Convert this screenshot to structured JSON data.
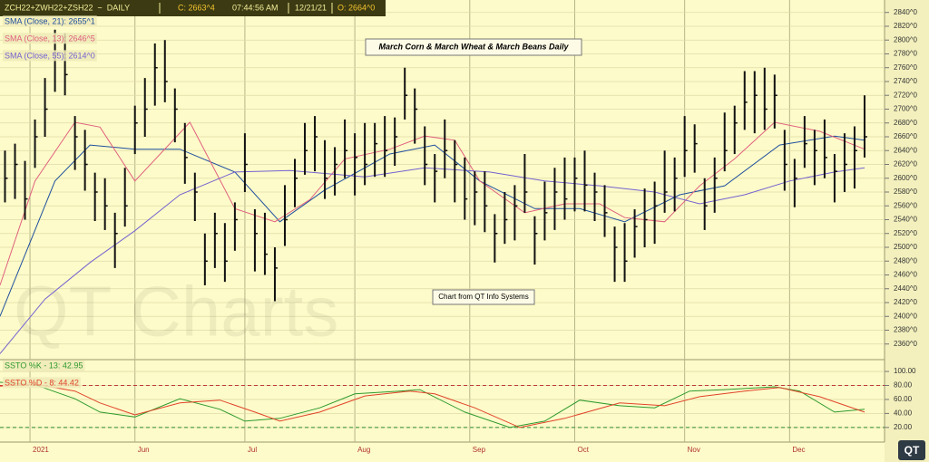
{
  "header": {
    "symbol": "ZCH22+ZWH22+ZSH22  ~  DAILY",
    "close": "C: 2663^4",
    "time": "07:44:56 AM",
    "date": "12/21/21",
    "open": "O: 2664^0"
  },
  "watermark": "QT Charts",
  "logo": "QT",
  "chart_data": [
    {
      "type": "ohlc",
      "title": "March Corn & March Wheat & March Beans Daily",
      "annotation": "Chart from QT Info Systems",
      "color": "#111111",
      "x": [
        1,
        3,
        5,
        7,
        9,
        11,
        13,
        15,
        17,
        19,
        21,
        23,
        25,
        27,
        29,
        31,
        33,
        35,
        37,
        39,
        41,
        43,
        45,
        47,
        49,
        51,
        53,
        55,
        57,
        59,
        61,
        63,
        65,
        67,
        69,
        71,
        73,
        75,
        77,
        79,
        81,
        83,
        85,
        87,
        89,
        91,
        93,
        95,
        97,
        99,
        101,
        103,
        105,
        107,
        109,
        111,
        113,
        115,
        117,
        119,
        121,
        123,
        125,
        127,
        129,
        131,
        133,
        135,
        137,
        139,
        141,
        143,
        145,
        147,
        149,
        151,
        153,
        155,
        157,
        159,
        161,
        163,
        165,
        167,
        169,
        171,
        173
      ],
      "high": [
        2640,
        2650,
        2625,
        2685,
        2745,
        2815,
        2810,
        2690,
        2670,
        2608,
        2600,
        2550,
        2615,
        2705,
        2745,
        2795,
        2800,
        2730,
        2680,
        2608,
        2520,
        2550,
        2535,
        2565,
        2665,
        2555,
        2550,
        2500,
        2590,
        2628,
        2680,
        2690,
        2655,
        2645,
        2685,
        2665,
        2680,
        2680,
        2690,
        2688,
        2760,
        2730,
        2675,
        2635,
        2685,
        2655,
        2630,
        2610,
        2610,
        2548,
        2580,
        2590,
        2635,
        2545,
        2595,
        2615,
        2630,
        2630,
        2640,
        2608,
        2590,
        2530,
        2535,
        2555,
        2585,
        2595,
        2640,
        2630,
        2690,
        2678,
        2600,
        2630,
        2695,
        2705,
        2755,
        2755,
        2760,
        2750,
        2670,
        2628,
        2690,
        2670,
        2685,
        2635,
        2665,
        2675,
        2720
      ],
      "low": [
        2565,
        2570,
        2540,
        2615,
        2660,
        2725,
        2720,
        2612,
        2582,
        2538,
        2525,
        2470,
        2530,
        2635,
        2660,
        2705,
        2710,
        2652,
        2592,
        2538,
        2445,
        2470,
        2450,
        2495,
        2580,
        2465,
        2460,
        2422,
        2502,
        2558,
        2605,
        2610,
        2570,
        2575,
        2600,
        2575,
        2590,
        2602,
        2602,
        2618,
        2685,
        2650,
        2590,
        2565,
        2600,
        2565,
        2540,
        2532,
        2522,
        2478,
        2505,
        2510,
        2550,
        2475,
        2510,
        2525,
        2540,
        2552,
        2552,
        2538,
        2515,
        2450,
        2450,
        2485,
        2500,
        2505,
        2550,
        2552,
        2602,
        2608,
        2525,
        2550,
        2610,
        2635,
        2670,
        2665,
        2670,
        2672,
        2582,
        2558,
        2615,
        2590,
        2600,
        2565,
        2580,
        2585,
        2630
      ],
      "close": [
        2600,
        2620,
        2570,
        2660,
        2700,
        2780,
        2750,
        2660,
        2620,
        2580,
        2560,
        2520,
        2560,
        2680,
        2700,
        2760,
        2740,
        2700,
        2630,
        2580,
        2480,
        2520,
        2480,
        2540,
        2620,
        2520,
        2490,
        2470,
        2540,
        2600,
        2640,
        2660,
        2600,
        2620,
        2640,
        2630,
        2620,
        2650,
        2640,
        2660,
        2720,
        2700,
        2620,
        2610,
        2640,
        2620,
        2570,
        2580,
        2560,
        2520,
        2540,
        2560,
        2580,
        2520,
        2550,
        2580,
        2570,
        2600,
        2590,
        2580,
        2550,
        2500,
        2480,
        2530,
        2540,
        2560,
        2580,
        2600,
        2640,
        2650,
        2560,
        2600,
        2640,
        2680,
        2710,
        2720,
        2700,
        2720,
        2620,
        2600,
        2650,
        2640,
        2630,
        2610,
        2620,
        2640,
        2660
      ],
      "series": [
        {
          "name": "SMA (Close, 21): 2655^1",
          "color": "#1f4f9e",
          "x": [
            0,
            11,
            18,
            27,
            36,
            47,
            56,
            65,
            78,
            87,
            96,
            107,
            116,
            125,
            136,
            145,
            156,
            167,
            173
          ],
          "values": [
            2400,
            2596,
            2648,
            2642,
            2642,
            2609,
            2537,
            2583,
            2635,
            2648,
            2596,
            2556,
            2556,
            2537,
            2576,
            2589,
            2648,
            2661,
            2655
          ]
        },
        {
          "name": "SMA (Close, 13): 2646^5",
          "color": "#e0607e",
          "x": [
            0,
            7,
            15,
            20,
            27,
            38,
            47,
            55,
            62,
            69,
            78,
            85,
            91,
            96,
            105,
            113,
            120,
            125,
            133,
            140,
            147,
            155,
            164,
            173
          ],
          "values": [
            2445,
            2596,
            2681,
            2674,
            2596,
            2681,
            2556,
            2537,
            2569,
            2628,
            2642,
            2661,
            2655,
            2596,
            2550,
            2563,
            2563,
            2543,
            2537,
            2589,
            2628,
            2681,
            2668,
            2642
          ]
        },
        {
          "name": "SMA (Close, 55): 2614^0",
          "color": "#7462d0",
          "x": [
            0,
            9,
            18,
            27,
            36,
            47,
            58,
            73,
            85,
            98,
            109,
            120,
            131,
            140,
            149,
            158,
            167,
            173
          ],
          "values": [
            2346,
            2425,
            2478,
            2524,
            2576,
            2609,
            2611,
            2602,
            2615,
            2609,
            2596,
            2589,
            2580,
            2563,
            2576,
            2596,
            2609,
            2615
          ]
        }
      ],
      "xlim": [
        0,
        177
      ],
      "xticks": [
        {
          "value": 6,
          "label": "2021"
        },
        {
          "value": 27,
          "label": "Jun"
        },
        {
          "value": 49,
          "label": "Jul"
        },
        {
          "value": 71,
          "label": "Aug"
        },
        {
          "value": 94,
          "label": "Sep"
        },
        {
          "value": 115,
          "label": "Oct"
        },
        {
          "value": 137,
          "label": "Nov"
        },
        {
          "value": 158,
          "label": "Dec"
        }
      ],
      "ylim": [
        2340,
        2858
      ],
      "yticks": [
        {
          "value": 2360,
          "label": "2360^0"
        },
        {
          "value": 2380,
          "label": "2380^0"
        },
        {
          "value": 2400,
          "label": "2400^0"
        },
        {
          "value": 2420,
          "label": "2420^0"
        },
        {
          "value": 2440,
          "label": "2440^0"
        },
        {
          "value": 2460,
          "label": "2460^0"
        },
        {
          "value": 2480,
          "label": "2480^0"
        },
        {
          "value": 2500,
          "label": "2500^0"
        },
        {
          "value": 2520,
          "label": "2520^0"
        },
        {
          "value": 2540,
          "label": "2540^0"
        },
        {
          "value": 2560,
          "label": "2560^0"
        },
        {
          "value": 2580,
          "label": "2580^0"
        },
        {
          "value": 2600,
          "label": "2600^0"
        },
        {
          "value": 2620,
          "label": "2620^0"
        },
        {
          "value": 2640,
          "label": "2640^0"
        },
        {
          "value": 2660,
          "label": "2660^0"
        },
        {
          "value": 2680,
          "label": "2680^0"
        },
        {
          "value": 2700,
          "label": "2700^0"
        },
        {
          "value": 2720,
          "label": "2720^0"
        },
        {
          "value": 2740,
          "label": "2740^0"
        },
        {
          "value": 2760,
          "label": "2760^0"
        },
        {
          "value": 2780,
          "label": "2780^0"
        },
        {
          "value": 2800,
          "label": "2800^0"
        },
        {
          "value": 2820,
          "label": "2820^0"
        },
        {
          "value": 2840,
          "label": "2840^0"
        }
      ],
      "grid": true
    },
    {
      "type": "line",
      "series": [
        {
          "name": "SSTO %K - 13: 42.95",
          "color": "#2e9a2e",
          "x": [
            0,
            7,
            15,
            20,
            27,
            36,
            44,
            49,
            56,
            64,
            71,
            80,
            84,
            93,
            102,
            109,
            116,
            124,
            131,
            138,
            145,
            155,
            160,
            167,
            173
          ],
          "values": [
            84.5,
            81,
            61,
            42,
            35,
            61,
            46,
            29,
            33,
            48,
            68,
            72,
            74,
            42,
            20,
            29,
            59,
            51,
            48,
            72,
            74,
            78,
            72,
            42,
            46
          ]
        },
        {
          "name": "SSTO %D - 8: 44.42",
          "color": "#e0442a",
          "x": [
            0,
            7,
            15,
            20,
            27,
            36,
            44,
            51,
            56,
            64,
            73,
            82,
            87,
            95,
            104,
            113,
            124,
            133,
            140,
            149,
            156,
            164,
            173
          ],
          "values": [
            79,
            82,
            72,
            55,
            38,
            55,
            59,
            42,
            29,
            42,
            65,
            72,
            68,
            48,
            20,
            33,
            55,
            51,
            64,
            72,
            77,
            64,
            42
          ]
        }
      ],
      "ylim": [
        3,
        113
      ],
      "yticks": [
        {
          "value": 20,
          "label": "20.00"
        },
        {
          "value": 40,
          "label": "40.00"
        },
        {
          "value": 60,
          "label": "60.00"
        },
        {
          "value": 80,
          "label": "80.00"
        },
        {
          "value": 100,
          "label": "100.00"
        }
      ],
      "ref_lines": [
        {
          "value": 80,
          "color": "#c03a3a"
        },
        {
          "value": 20,
          "color": "#2e8a2e"
        }
      ],
      "grid": true
    }
  ]
}
